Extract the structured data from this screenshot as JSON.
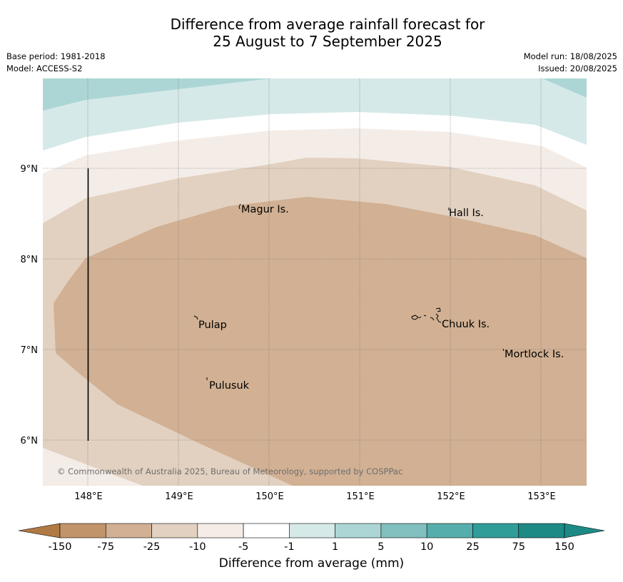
{
  "header": {
    "title_line1": "Difference from average rainfall forecast for",
    "title_line2": "25 August to 7 September 2025",
    "base_period": "Base period: 1981-2018",
    "model": "Model: ACCESS-S2",
    "model_run": "Model run: 18/08/2025",
    "issued": "Issued: 20/08/2025"
  },
  "map": {
    "lon_labels": [
      "148°E",
      "149°E",
      "150°E",
      "151°E",
      "152°E",
      "153°E"
    ],
    "lat_labels": [
      "9°N",
      "8°N",
      "7°N",
      "6°N"
    ],
    "places": {
      "magur": "Magur Is.",
      "hall": "Hall Is.",
      "pulap": "Pulap",
      "chuuk": "Chuuk Is.",
      "mortlock": "Mortlock Is.",
      "pulusuk": "Pulusuk"
    },
    "copyright": "© Commonwealth of Australia 2025, Bureau of Meteorology, supported by COSPPac"
  },
  "colorbar": {
    "ticks": [
      "-150",
      "-75",
      "-25",
      "-10",
      "-5",
      "-1",
      "1",
      "5",
      "10",
      "25",
      "75",
      "150"
    ],
    "colors": [
      "#b07a44",
      "#c29469",
      "#d1b093",
      "#e2d1c0",
      "#f4ece7",
      "#ffffff",
      "#d5e9e8",
      "#acd6d5",
      "#80c0bf",
      "#56aeac",
      "#309d99",
      "#1e8a86"
    ],
    "label": "Difference from average (mm)"
  }
}
